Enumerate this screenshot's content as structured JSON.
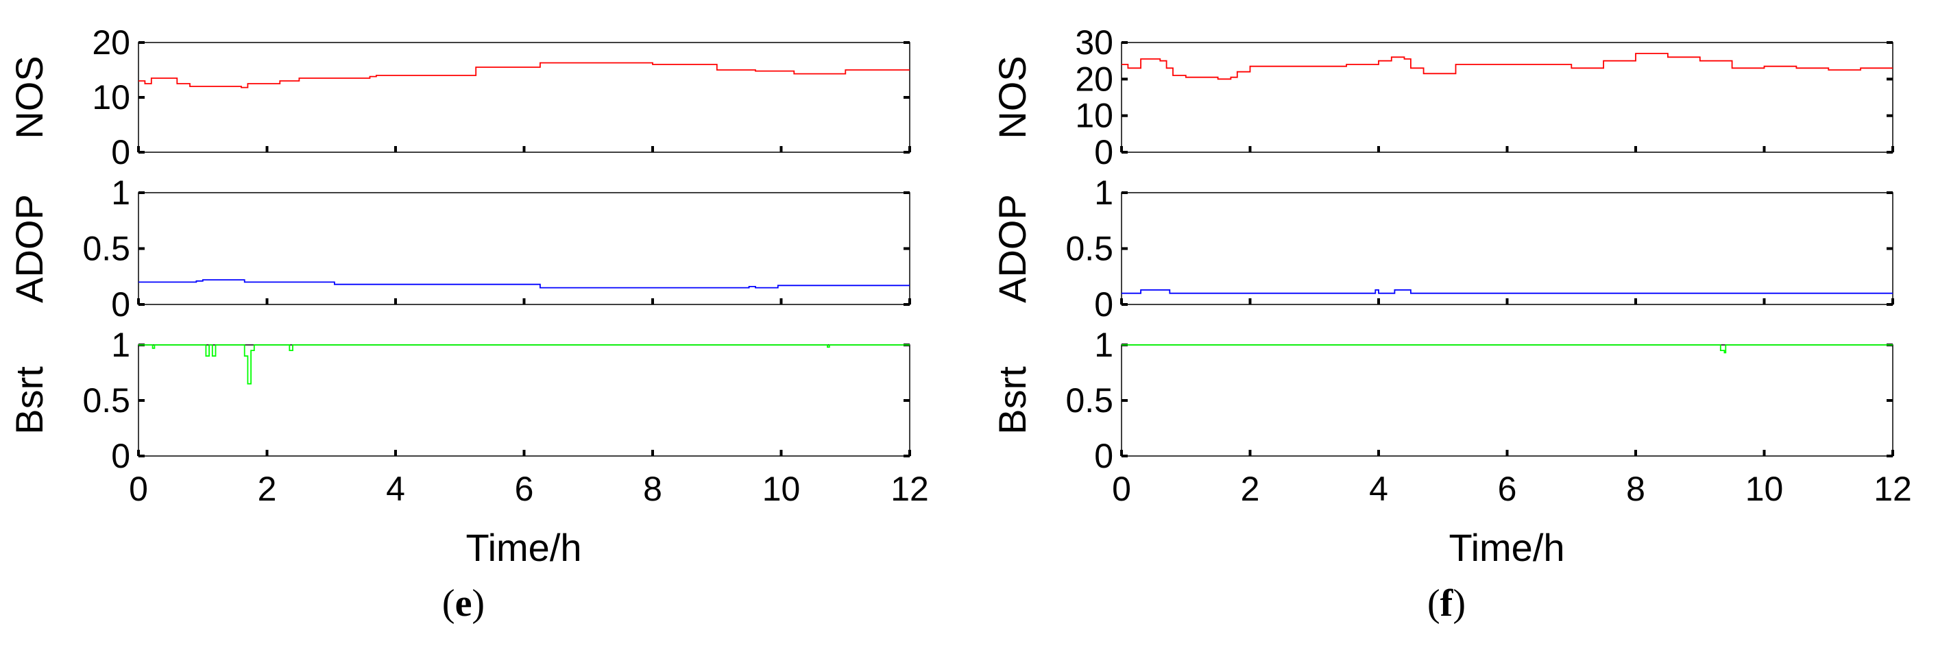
{
  "chart_data": [
    {
      "panel_label": "e",
      "type": "line",
      "x_label": "Time/h",
      "x_ticks": [
        0,
        2,
        4,
        6,
        8,
        10,
        12
      ],
      "xlim": [
        0,
        12
      ],
      "subplots": [
        {
          "ylabel": "NOS",
          "ylim": [
            0,
            20
          ],
          "y_ticks": [
            0,
            10,
            20
          ],
          "color": "#ff0000",
          "points": [
            [
              0,
              13
            ],
            [
              0.1,
              12.5
            ],
            [
              0.2,
              13.5
            ],
            [
              0.5,
              13.5
            ],
            [
              0.6,
              12.5
            ],
            [
              0.8,
              12
            ],
            [
              1.0,
              12
            ],
            [
              1.3,
              12
            ],
            [
              1.6,
              11.8
            ],
            [
              1.7,
              12.5
            ],
            [
              2.0,
              12.5
            ],
            [
              2.2,
              13
            ],
            [
              2.5,
              13.5
            ],
            [
              3.0,
              13.5
            ],
            [
              3.6,
              13.8
            ],
            [
              3.7,
              14
            ],
            [
              4.0,
              14
            ],
            [
              5.2,
              14
            ],
            [
              5.25,
              15.5
            ],
            [
              6.2,
              15.5
            ],
            [
              6.25,
              16.3
            ],
            [
              7.0,
              16.3
            ],
            [
              7.5,
              16.3
            ],
            [
              8.0,
              16
            ],
            [
              8.5,
              16
            ],
            [
              8.8,
              16
            ],
            [
              9.0,
              15
            ],
            [
              9.3,
              15
            ],
            [
              9.6,
              14.8
            ],
            [
              10.0,
              14.8
            ],
            [
              10.2,
              14.3
            ],
            [
              10.8,
              14.3
            ],
            [
              11.0,
              15
            ],
            [
              11.5,
              15
            ],
            [
              12,
              15
            ]
          ]
        },
        {
          "ylabel": "ADOP",
          "ylim": [
            0,
            1
          ],
          "y_ticks": [
            0,
            0.5,
            1
          ],
          "color": "#0000ff",
          "points": [
            [
              0,
              0.2
            ],
            [
              0.5,
              0.2
            ],
            [
              0.9,
              0.21
            ],
            [
              1.0,
              0.22
            ],
            [
              1.6,
              0.22
            ],
            [
              1.65,
              0.2
            ],
            [
              3.0,
              0.2
            ],
            [
              3.05,
              0.18
            ],
            [
              3.7,
              0.18
            ],
            [
              6.2,
              0.18
            ],
            [
              6.25,
              0.15
            ],
            [
              9.4,
              0.15
            ],
            [
              9.5,
              0.16
            ],
            [
              9.6,
              0.15
            ],
            [
              9.9,
              0.15
            ],
            [
              9.95,
              0.17
            ],
            [
              12,
              0.17
            ]
          ]
        },
        {
          "ylabel": "Bsrt",
          "ylim": [
            0,
            1
          ],
          "y_ticks": [
            0,
            0.5,
            1
          ],
          "color": "#00ff00",
          "points": [
            [
              0,
              1
            ],
            [
              0.2,
              1
            ],
            [
              0.22,
              0.97
            ],
            [
              0.25,
              1
            ],
            [
              1.0,
              1
            ],
            [
              1.05,
              0.9
            ],
            [
              1.1,
              1
            ],
            [
              1.15,
              0.9
            ],
            [
              1.2,
              1
            ],
            [
              1.6,
              1
            ],
            [
              1.65,
              0.9
            ],
            [
              1.7,
              0.65
            ],
            [
              1.75,
              0.95
            ],
            [
              1.8,
              1
            ],
            [
              2.3,
              1
            ],
            [
              2.35,
              0.95
            ],
            [
              2.4,
              1
            ],
            [
              10.7,
              1
            ],
            [
              10.72,
              0.98
            ],
            [
              10.75,
              1
            ],
            [
              12,
              1
            ]
          ]
        }
      ]
    },
    {
      "panel_label": "f",
      "type": "line",
      "x_label": "Time/h",
      "x_ticks": [
        0,
        2,
        4,
        6,
        8,
        10,
        12
      ],
      "xlim": [
        0,
        12
      ],
      "subplots": [
        {
          "ylabel": "NOS",
          "ylim": [
            0,
            30
          ],
          "y_ticks": [
            0,
            10,
            20,
            30
          ],
          "color": "#ff0000",
          "points": [
            [
              0,
              24
            ],
            [
              0.1,
              23
            ],
            [
              0.3,
              25.5
            ],
            [
              0.6,
              25
            ],
            [
              0.7,
              23
            ],
            [
              0.8,
              21
            ],
            [
              1.0,
              20.5
            ],
            [
              1.5,
              20
            ],
            [
              1.7,
              20.5
            ],
            [
              1.8,
              22
            ],
            [
              2.0,
              23.5
            ],
            [
              2.5,
              23.5
            ],
            [
              3.0,
              23.5
            ],
            [
              3.5,
              24
            ],
            [
              4.0,
              25
            ],
            [
              4.2,
              26
            ],
            [
              4.4,
              25.5
            ],
            [
              4.5,
              23
            ],
            [
              4.7,
              21.5
            ],
            [
              5.0,
              21.5
            ],
            [
              5.2,
              24
            ],
            [
              6.0,
              24
            ],
            [
              6.5,
              24
            ],
            [
              7.0,
              23
            ],
            [
              7.5,
              25
            ],
            [
              8.0,
              27
            ],
            [
              8.5,
              26
            ],
            [
              9.0,
              25
            ],
            [
              9.5,
              23
            ],
            [
              10.0,
              23.5
            ],
            [
              10.5,
              23
            ],
            [
              11.0,
              22.5
            ],
            [
              11.5,
              23
            ],
            [
              12,
              23
            ]
          ]
        },
        {
          "ylabel": "ADOP",
          "ylim": [
            0,
            1
          ],
          "y_ticks": [
            0,
            0.5,
            1
          ],
          "color": "#0000ff",
          "points": [
            [
              0,
              0.1
            ],
            [
              0.25,
              0.1
            ],
            [
              0.3,
              0.13
            ],
            [
              0.65,
              0.13
            ],
            [
              0.75,
              0.1
            ],
            [
              3.9,
              0.1
            ],
            [
              3.95,
              0.13
            ],
            [
              4.0,
              0.1
            ],
            [
              4.2,
              0.1
            ],
            [
              4.25,
              0.13
            ],
            [
              4.45,
              0.13
            ],
            [
              4.5,
              0.1
            ],
            [
              12,
              0.1
            ]
          ]
        },
        {
          "ylabel": "Bsrt",
          "ylim": [
            0,
            1
          ],
          "y_ticks": [
            0,
            0.5,
            1
          ],
          "color": "#00ff00",
          "points": [
            [
              0,
              1
            ],
            [
              9.3,
              1
            ],
            [
              9.32,
              0.95
            ],
            [
              9.38,
              0.93
            ],
            [
              9.4,
              1
            ],
            [
              12,
              1
            ]
          ]
        }
      ]
    }
  ]
}
